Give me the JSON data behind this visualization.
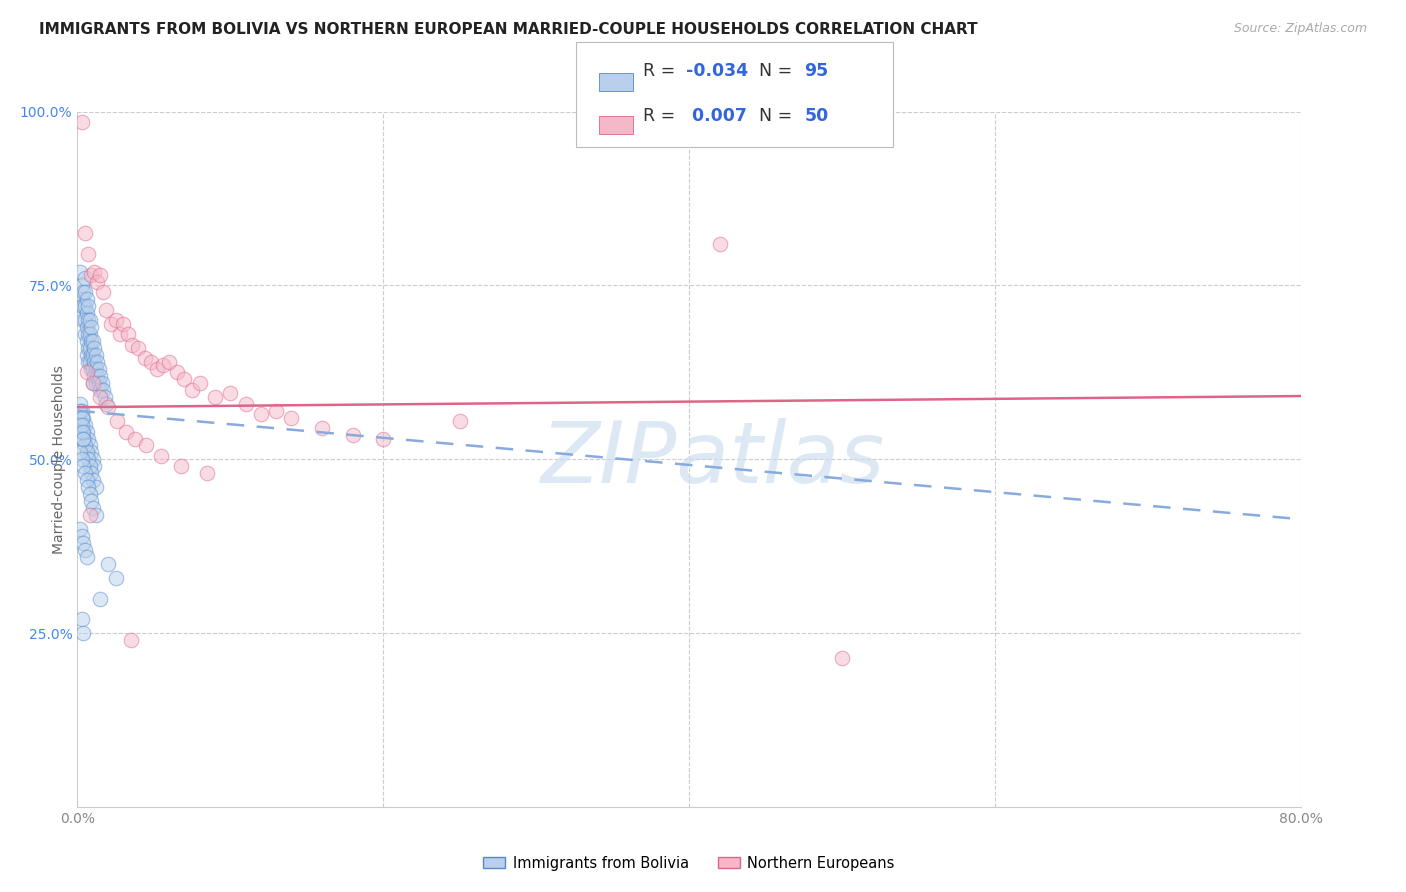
{
  "title": "IMMIGRANTS FROM BOLIVIA VS NORTHERN EUROPEAN MARRIED-COUPLE HOUSEHOLDS CORRELATION CHART",
  "source": "Source: ZipAtlas.com",
  "ylabel": "Married-couple Households",
  "xmin": 0.0,
  "xmax": 0.8,
  "ymin": 0.0,
  "ymax": 1.0,
  "xticks": [
    0.0,
    0.2,
    0.4,
    0.6,
    0.8
  ],
  "xtick_labels_show": [
    "0.0%",
    "80.0%"
  ],
  "xtick_positions_show": [
    0.0,
    0.8
  ],
  "yticks": [
    0.0,
    0.25,
    0.5,
    0.75,
    1.0
  ],
  "ytick_labels_right": [
    "",
    "25.0%",
    "50.0%",
    "75.0%",
    "100.0%"
  ],
  "color_bolivia_fill": "#b8d0eb",
  "color_bolivia_edge": "#5588cc",
  "color_northern_fill": "#f5b8c8",
  "color_northern_edge": "#dd6688",
  "color_bolivia_line": "#88aadd",
  "color_northern_line": "#dd6688",
  "watermark_text": "ZIPatlas",
  "watermark_color": "#ccddf0",
  "grid_color": "#cccccc",
  "bg_color": "#ffffff",
  "title_color": "#222222",
  "source_color": "#aaaaaa",
  "tick_color_x": "#888888",
  "tick_color_y": "#4488ee",
  "ylabel_color": "#666666",
  "legend_r_color": "#333333",
  "legend_val_color": "#3366dd",
  "bolivia_intercept": 0.57,
  "bolivia_slope": -0.195,
  "northern_intercept": 0.575,
  "northern_slope": 0.02,
  "bolivia_x": [
    0.002,
    0.003,
    0.003,
    0.003,
    0.004,
    0.004,
    0.004,
    0.005,
    0.005,
    0.005,
    0.005,
    0.005,
    0.006,
    0.006,
    0.006,
    0.006,
    0.006,
    0.007,
    0.007,
    0.007,
    0.007,
    0.007,
    0.008,
    0.008,
    0.008,
    0.008,
    0.009,
    0.009,
    0.009,
    0.009,
    0.01,
    0.01,
    0.01,
    0.01,
    0.011,
    0.011,
    0.011,
    0.012,
    0.012,
    0.012,
    0.013,
    0.013,
    0.014,
    0.014,
    0.015,
    0.015,
    0.016,
    0.017,
    0.018,
    0.019,
    0.002,
    0.003,
    0.004,
    0.005,
    0.006,
    0.007,
    0.008,
    0.009,
    0.01,
    0.011,
    0.002,
    0.003,
    0.004,
    0.005,
    0.006,
    0.007,
    0.008,
    0.009,
    0.01,
    0.012,
    0.002,
    0.003,
    0.004,
    0.005,
    0.006,
    0.007,
    0.008,
    0.009,
    0.01,
    0.012,
    0.002,
    0.003,
    0.004,
    0.005,
    0.006,
    0.002,
    0.003,
    0.003,
    0.004,
    0.004,
    0.02,
    0.025,
    0.015,
    0.003,
    0.004
  ],
  "bolivia_y": [
    0.77,
    0.75,
    0.73,
    0.72,
    0.74,
    0.72,
    0.7,
    0.76,
    0.74,
    0.72,
    0.7,
    0.68,
    0.73,
    0.71,
    0.69,
    0.67,
    0.65,
    0.72,
    0.7,
    0.68,
    0.66,
    0.64,
    0.7,
    0.68,
    0.66,
    0.64,
    0.69,
    0.67,
    0.65,
    0.63,
    0.67,
    0.65,
    0.63,
    0.61,
    0.66,
    0.64,
    0.62,
    0.65,
    0.63,
    0.61,
    0.64,
    0.62,
    0.63,
    0.61,
    0.62,
    0.6,
    0.61,
    0.6,
    0.59,
    0.58,
    0.58,
    0.57,
    0.56,
    0.55,
    0.54,
    0.53,
    0.52,
    0.51,
    0.5,
    0.49,
    0.55,
    0.54,
    0.53,
    0.52,
    0.51,
    0.5,
    0.49,
    0.48,
    0.47,
    0.46,
    0.51,
    0.5,
    0.49,
    0.48,
    0.47,
    0.46,
    0.45,
    0.44,
    0.43,
    0.42,
    0.4,
    0.39,
    0.38,
    0.37,
    0.36,
    0.57,
    0.56,
    0.55,
    0.54,
    0.53,
    0.35,
    0.33,
    0.3,
    0.27,
    0.25
  ],
  "northern_x": [
    0.003,
    0.005,
    0.007,
    0.009,
    0.011,
    0.013,
    0.015,
    0.017,
    0.019,
    0.022,
    0.025,
    0.028,
    0.03,
    0.033,
    0.036,
    0.04,
    0.044,
    0.048,
    0.052,
    0.056,
    0.06,
    0.065,
    0.07,
    0.075,
    0.08,
    0.09,
    0.1,
    0.11,
    0.12,
    0.13,
    0.14,
    0.16,
    0.18,
    0.2,
    0.25,
    0.006,
    0.01,
    0.015,
    0.02,
    0.026,
    0.032,
    0.038,
    0.045,
    0.055,
    0.068,
    0.085,
    0.42,
    0.008,
    0.035,
    0.5
  ],
  "northern_y": [
    0.985,
    0.825,
    0.795,
    0.765,
    0.77,
    0.755,
    0.765,
    0.74,
    0.715,
    0.695,
    0.7,
    0.68,
    0.695,
    0.68,
    0.665,
    0.66,
    0.645,
    0.64,
    0.63,
    0.635,
    0.64,
    0.625,
    0.615,
    0.6,
    0.61,
    0.59,
    0.595,
    0.58,
    0.565,
    0.57,
    0.56,
    0.545,
    0.535,
    0.53,
    0.555,
    0.625,
    0.61,
    0.59,
    0.575,
    0.555,
    0.54,
    0.53,
    0.52,
    0.505,
    0.49,
    0.48,
    0.81,
    0.42,
    0.24,
    0.215
  ],
  "marker_size": 110,
  "marker_alpha": 0.5,
  "legend_fontsize": 12.5,
  "title_fontsize": 11,
  "tick_fontsize": 10,
  "axis_label_fontsize": 10
}
